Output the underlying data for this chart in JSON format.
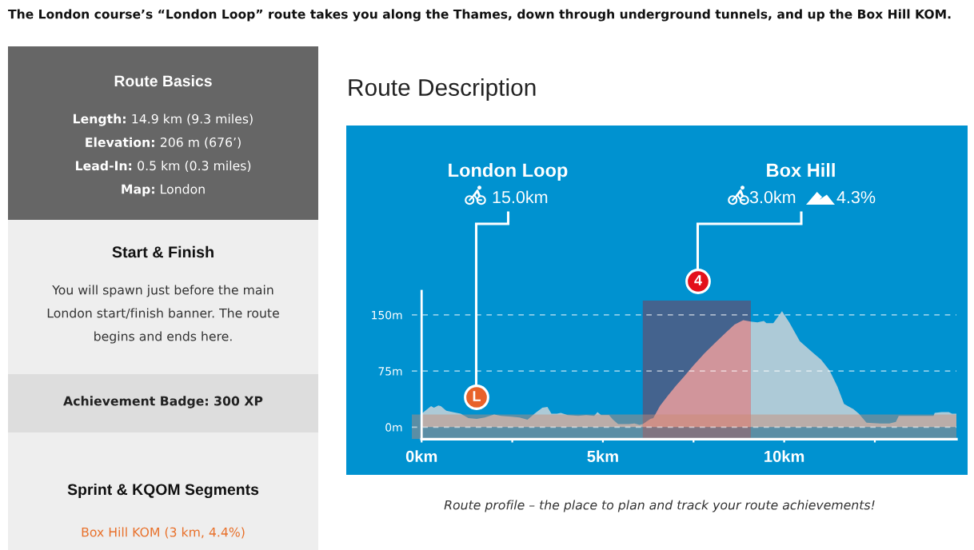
{
  "chart_data": [
    {
      "type": "other",
      "title": "The London course’s “London Loop” route takes you along the Thames, down through underground tunnels, and up the Box Hill KOM."
    },
    {
      "type": "other",
      "title": "Route Basics",
      "annotations": [
        "Length: 14.9 km (9.3 miles)",
        "Elevation: 206 m (676’)",
        "Lead-In: 0.5 km (0.3 miles)",
        "Map: London"
      ]
    },
    {
      "type": "other",
      "title": "Start & Finish",
      "annotations": [
        "You will spawn just before the main London start/finish banner. The route begins and ends here."
      ]
    },
    {
      "type": "other",
      "title": "Achievement Badge: 300 XP"
    },
    {
      "type": "other",
      "title": "Sprint & KQOM Segments",
      "annotations": [
        "Box Hill KOM (3 km, 4.4%)"
      ]
    },
    {
      "type": "area",
      "title": "Route Description",
      "series": [
        {
          "color": "#adcad7",
          "x": [
            0,
            0.26,
            0.34,
            0.46,
            0.53,
            0.68,
            0.86,
            1.08,
            1.29,
            1.52,
            1.74,
            2.0,
            2.19,
            2.48,
            2.7,
            2.92,
            3.14,
            3.33,
            3.47,
            3.58,
            3.73,
            3.84,
            4.03,
            4.32,
            4.54,
            4.76,
            4.85,
            4.95,
            5.17,
            5.28,
            5.42,
            5.72,
            5.87,
            6.01,
            6.1
          ],
          "values": [
            18,
            28,
            26,
            29,
            28,
            22,
            20,
            18,
            12,
            11,
            13,
            17,
            15,
            14,
            13,
            10,
            19,
            26,
            27,
            18,
            18,
            19,
            16,
            15,
            16,
            15,
            20,
            16,
            16,
            10,
            4,
            4,
            5,
            3,
            4
          ]
        },
        {
          "color": "#d1959b",
          "x": [
            6.1,
            6.31,
            6.39,
            6.57,
            6.79,
            7.01,
            7.23,
            7.49,
            7.79,
            8.08,
            8.38,
            8.63,
            8.87,
            9.08
          ],
          "values": [
            4,
            11,
            12,
            28,
            42,
            55,
            67,
            82,
            98,
            112,
            126,
            137,
            143,
            141
          ]
        },
        {
          "color": "#adcad7",
          "x": [
            9.08,
            9.26,
            9.44,
            9.51,
            9.7,
            9.94,
            10.14,
            10.43,
            10.73,
            11.02,
            11.25,
            11.47,
            11.65,
            11.91,
            12.06,
            12.27,
            12.64,
            12.9,
            13.08,
            13.16,
            13.75,
            14.12,
            14.15,
            14.34,
            14.54,
            14.63,
            14.75
          ],
          "values": [
            141,
            140,
            142,
            139,
            139,
            155,
            140,
            115,
            102,
            90,
            76,
            54,
            31,
            24,
            18,
            6,
            5,
            5,
            7,
            15,
            15,
            15,
            19,
            20,
            20,
            18,
            18
          ]
        }
      ],
      "xlim": [
        -0.27,
        14.75
      ],
      "ylim": [
        -16,
        182
      ],
      "xticks": [
        {
          "value": 0,
          "label": "0km"
        },
        {
          "value": 2.5,
          "label": null
        },
        {
          "value": 5,
          "label": "5km"
        },
        {
          "value": 7.5,
          "label": null
        },
        {
          "value": 10,
          "label": "10km"
        },
        {
          "value": 12.5,
          "label": null
        }
      ],
      "yticks": [
        {
          "value": 0,
          "label": "0m"
        },
        {
          "value": 75,
          "label": "75m"
        },
        {
          "value": 150,
          "label": "150m"
        }
      ],
      "grid": "y",
      "bands": [
        {
          "axis": "x",
          "from": 6.1,
          "to": 9.08,
          "color": "#44638e"
        },
        {
          "axis": "y",
          "from": -16,
          "to": 17,
          "color": "#c98a70"
        }
      ],
      "annotations": [
        "London Loop",
        "15.0km",
        "Box Hill",
        "3.0km",
        "4.3%",
        "L",
        "4",
        "Route profile – the place to plan and track your route achievements!"
      ]
    }
  ]
}
